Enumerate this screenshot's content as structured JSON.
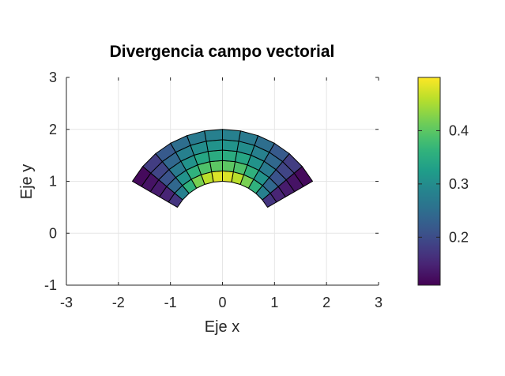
{
  "chart_data": {
    "type": "heatmap",
    "title": "Divergencia campo vectorial",
    "xlabel": "Eje x",
    "ylabel": "Eje y",
    "xlim": [
      -3,
      3
    ],
    "ylim": [
      -1,
      3
    ],
    "xticks": [
      -3,
      -2,
      -1,
      0,
      1,
      2,
      3
    ],
    "yticks": [
      -1,
      0,
      1,
      2,
      3
    ],
    "xtick_labels": [
      "-3",
      "-2",
      "-1",
      "0",
      "1",
      "2",
      "3"
    ],
    "ytick_labels": [
      "-1",
      "0",
      "1",
      "2",
      "3"
    ],
    "grid": true,
    "colormap": "viridis",
    "clim": [
      0.11,
      0.5
    ],
    "colorbar_ticks": [
      0.2,
      0.3,
      0.4
    ],
    "colorbar_tick_labels": [
      "0.2",
      "0.3",
      "0.4"
    ],
    "domain": {
      "shape": "annular-sector",
      "r_min": 1,
      "r_max": 2,
      "theta_min_deg": 30,
      "theta_max_deg": 150
    },
    "r_edges": [
      1.0,
      1.2,
      1.4,
      1.6,
      1.8,
      2.0
    ],
    "theta_edges_deg": [
      30,
      40,
      50,
      60,
      70,
      80,
      90,
      100,
      110,
      120,
      130,
      140,
      150
    ],
    "values": [
      [
        0.17,
        0.28,
        0.36,
        0.42,
        0.46,
        0.48,
        0.48,
        0.46,
        0.42,
        0.36,
        0.28,
        0.17
      ],
      [
        0.15,
        0.24,
        0.31,
        0.36,
        0.39,
        0.4,
        0.4,
        0.39,
        0.36,
        0.31,
        0.24,
        0.15
      ],
      [
        0.14,
        0.21,
        0.27,
        0.31,
        0.34,
        0.35,
        0.35,
        0.34,
        0.31,
        0.27,
        0.21,
        0.14
      ],
      [
        0.13,
        0.19,
        0.24,
        0.28,
        0.3,
        0.31,
        0.31,
        0.3,
        0.28,
        0.24,
        0.19,
        0.13
      ],
      [
        0.12,
        0.18,
        0.22,
        0.25,
        0.27,
        0.28,
        0.28,
        0.27,
        0.25,
        0.22,
        0.18,
        0.12
      ]
    ]
  }
}
